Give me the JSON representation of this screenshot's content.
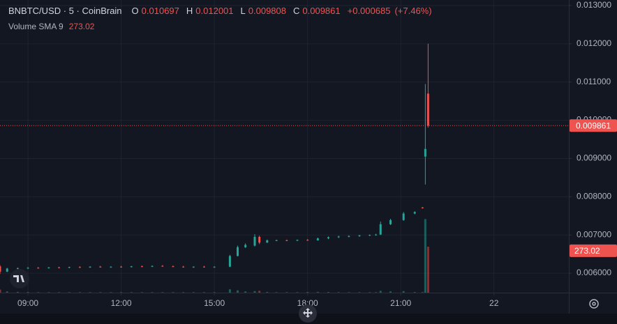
{
  "chart_data": {
    "type": "candlestick",
    "title": "BNBTC/USD · 5 · CoinBrain",
    "ohlc_labels": {
      "open": "O",
      "high": "H",
      "low": "L",
      "close": "C"
    },
    "change": {
      "value": 0.000685,
      "label": "+0.000685"
    },
    "change_pct": {
      "value": 7.46,
      "label": "(+7.46%)"
    },
    "volume_sma": {
      "name": "Volume SMA 9",
      "value": 273.02
    },
    "up_color": "#26a69a",
    "down_color": "#ef5350",
    "grid": true,
    "x": [
      8.1,
      8.33,
      8.67,
      9.0,
      9.33,
      9.67,
      10.0,
      10.33,
      10.67,
      11.0,
      11.33,
      11.67,
      12.0,
      12.33,
      12.67,
      13.0,
      13.33,
      13.67,
      14.0,
      14.33,
      14.67,
      15.0,
      15.5,
      15.75,
      16.0,
      16.3,
      16.45,
      16.7,
      17.0,
      17.33,
      17.67,
      18.0,
      18.33,
      18.67,
      19.0,
      19.33,
      19.67,
      20.0,
      20.2,
      20.35,
      20.67,
      21.09,
      21.45,
      21.7,
      21.79,
      21.88
    ],
    "open": [
      0.00618,
      0.00604,
      0.00612,
      0.00613,
      0.00614,
      0.00613,
      0.00615,
      0.00614,
      0.00616,
      0.00615,
      0.00617,
      0.00616,
      0.00617,
      0.00616,
      0.00618,
      0.00617,
      0.00619,
      0.00618,
      0.00617,
      0.00616,
      0.00617,
      0.00616,
      0.00617,
      0.00645,
      0.00668,
      0.00672,
      0.00695,
      0.0068,
      0.00686,
      0.00686,
      0.00685,
      0.00687,
      0.00686,
      0.00691,
      0.00694,
      0.00696,
      0.00697,
      0.00699,
      0.007,
      0.00701,
      0.00728,
      0.00739,
      0.00756,
      0.00772,
      0.00905,
      0.010697
    ],
    "high": [
      0.00621,
      0.00614,
      0.00615,
      0.00616,
      0.00616,
      0.00616,
      0.00617,
      0.00617,
      0.00618,
      0.00618,
      0.00619,
      0.00618,
      0.00619,
      0.00619,
      0.0062,
      0.0062,
      0.00621,
      0.0062,
      0.00619,
      0.00618,
      0.00619,
      0.00618,
      0.00648,
      0.00672,
      0.00678,
      0.00702,
      0.00698,
      0.00688,
      0.00688,
      0.00688,
      0.00688,
      0.00689,
      0.00693,
      0.00696,
      0.00698,
      0.00699,
      0.007,
      0.00701,
      0.00703,
      0.00735,
      0.00742,
      0.0076,
      0.00762,
      0.00773,
      0.01095,
      0.012001
    ],
    "low": [
      0.00598,
      0.00603,
      0.0061,
      0.00611,
      0.00612,
      0.00612,
      0.00613,
      0.00613,
      0.00614,
      0.00614,
      0.00615,
      0.00614,
      0.00615,
      0.00615,
      0.00616,
      0.00616,
      0.00617,
      0.00616,
      0.00615,
      0.00614,
      0.00615,
      0.00614,
      0.00616,
      0.00644,
      0.00666,
      0.0067,
      0.00676,
      0.00679,
      0.00684,
      0.00684,
      0.00684,
      0.00685,
      0.00685,
      0.00689,
      0.00692,
      0.00694,
      0.00695,
      0.00697,
      0.00698,
      0.007,
      0.00726,
      0.00737,
      0.00754,
      0.00769,
      0.00832,
      0.009808
    ],
    "close": [
      0.00604,
      0.00612,
      0.00613,
      0.00614,
      0.00613,
      0.00615,
      0.00614,
      0.00616,
      0.00615,
      0.00617,
      0.00616,
      0.00617,
      0.00616,
      0.00618,
      0.00617,
      0.00619,
      0.00618,
      0.00617,
      0.00616,
      0.00617,
      0.00616,
      0.00617,
      0.00645,
      0.00668,
      0.00674,
      0.00695,
      0.0068,
      0.00686,
      0.00686,
      0.00685,
      0.00687,
      0.00686,
      0.00691,
      0.00694,
      0.00696,
      0.00697,
      0.00699,
      0.007,
      0.00701,
      0.00728,
      0.00739,
      0.00756,
      0.0076,
      0.0077,
      0.00925,
      0.009861
    ],
    "volume": [
      20,
      8,
      5,
      4,
      3,
      3,
      3,
      3,
      3,
      3,
      3,
      3,
      3,
      3,
      3,
      3,
      3,
      3,
      3,
      3,
      3,
      3,
      22,
      15,
      8,
      10,
      12,
      5,
      3,
      3,
      3,
      4,
      5,
      4,
      3,
      3,
      3,
      3,
      3,
      12,
      8,
      10,
      4,
      3,
      480,
      300
    ],
    "xlim": [
      8.1,
      26.41
    ],
    "xticks": [
      {
        "value": 9,
        "label": "09:00"
      },
      {
        "value": 12,
        "label": "12:00"
      },
      {
        "value": 15,
        "label": "15:00"
      },
      {
        "value": 18,
        "label": "18:00"
      },
      {
        "value": 21,
        "label": "21:00"
      },
      {
        "value": 24,
        "label": "22"
      }
    ],
    "ylim": [
      0.005491,
      0.013145
    ],
    "yticks": [
      {
        "value": 0.006,
        "label": "0.006000"
      },
      {
        "value": 0.007,
        "label": "0.007000"
      },
      {
        "value": 0.008,
        "label": "0.008000"
      },
      {
        "value": 0.009,
        "label": "0.009000"
      },
      {
        "value": 0.01,
        "label": "0.010000"
      },
      {
        "value": 0.011,
        "label": "0.011000"
      },
      {
        "value": 0.012,
        "label": "0.012000"
      },
      {
        "value": 0.013,
        "label": "0.013000"
      }
    ],
    "volume_ylim": [
      0,
      500
    ]
  }
}
